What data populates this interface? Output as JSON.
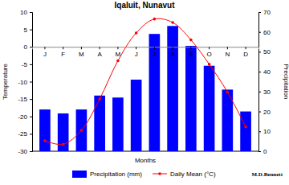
{
  "chart_data": {
    "type": "bar",
    "title": "Iqaluit, Nunavut",
    "categories": [
      "J",
      "F",
      "M",
      "A",
      "M",
      "J",
      "J",
      "A",
      "S",
      "O",
      "N",
      "D"
    ],
    "x_label": "Months",
    "y_label": "Temperature",
    "y2_label": "Precipitation",
    "series": [
      {
        "name": "Precipitation (mm)",
        "type": "bar",
        "axis": "y2",
        "color": "#0000ff",
        "values": [
          21,
          19,
          21,
          28,
          27,
          36,
          59,
          63,
          53,
          43,
          31,
          20
        ]
      },
      {
        "name": "Daily Mean (°C)",
        "type": "line",
        "color": "#ff0000",
        "marker": "circle",
        "values": [
          -27,
          -28,
          -24,
          -15,
          -4,
          4,
          8,
          7,
          2,
          -5,
          -13,
          -23
        ]
      }
    ],
    "ylim": [
      -30,
      10
    ],
    "yticks": [
      -30,
      -25,
      -20,
      -15,
      -10,
      -5,
      0,
      5,
      10
    ],
    "y2lim": [
      0,
      70
    ],
    "y2ticks": [
      0,
      10,
      20,
      30,
      40,
      50,
      60,
      70
    ],
    "legend": "bottom",
    "annotations": [
      "M.D.Bennett"
    ]
  }
}
